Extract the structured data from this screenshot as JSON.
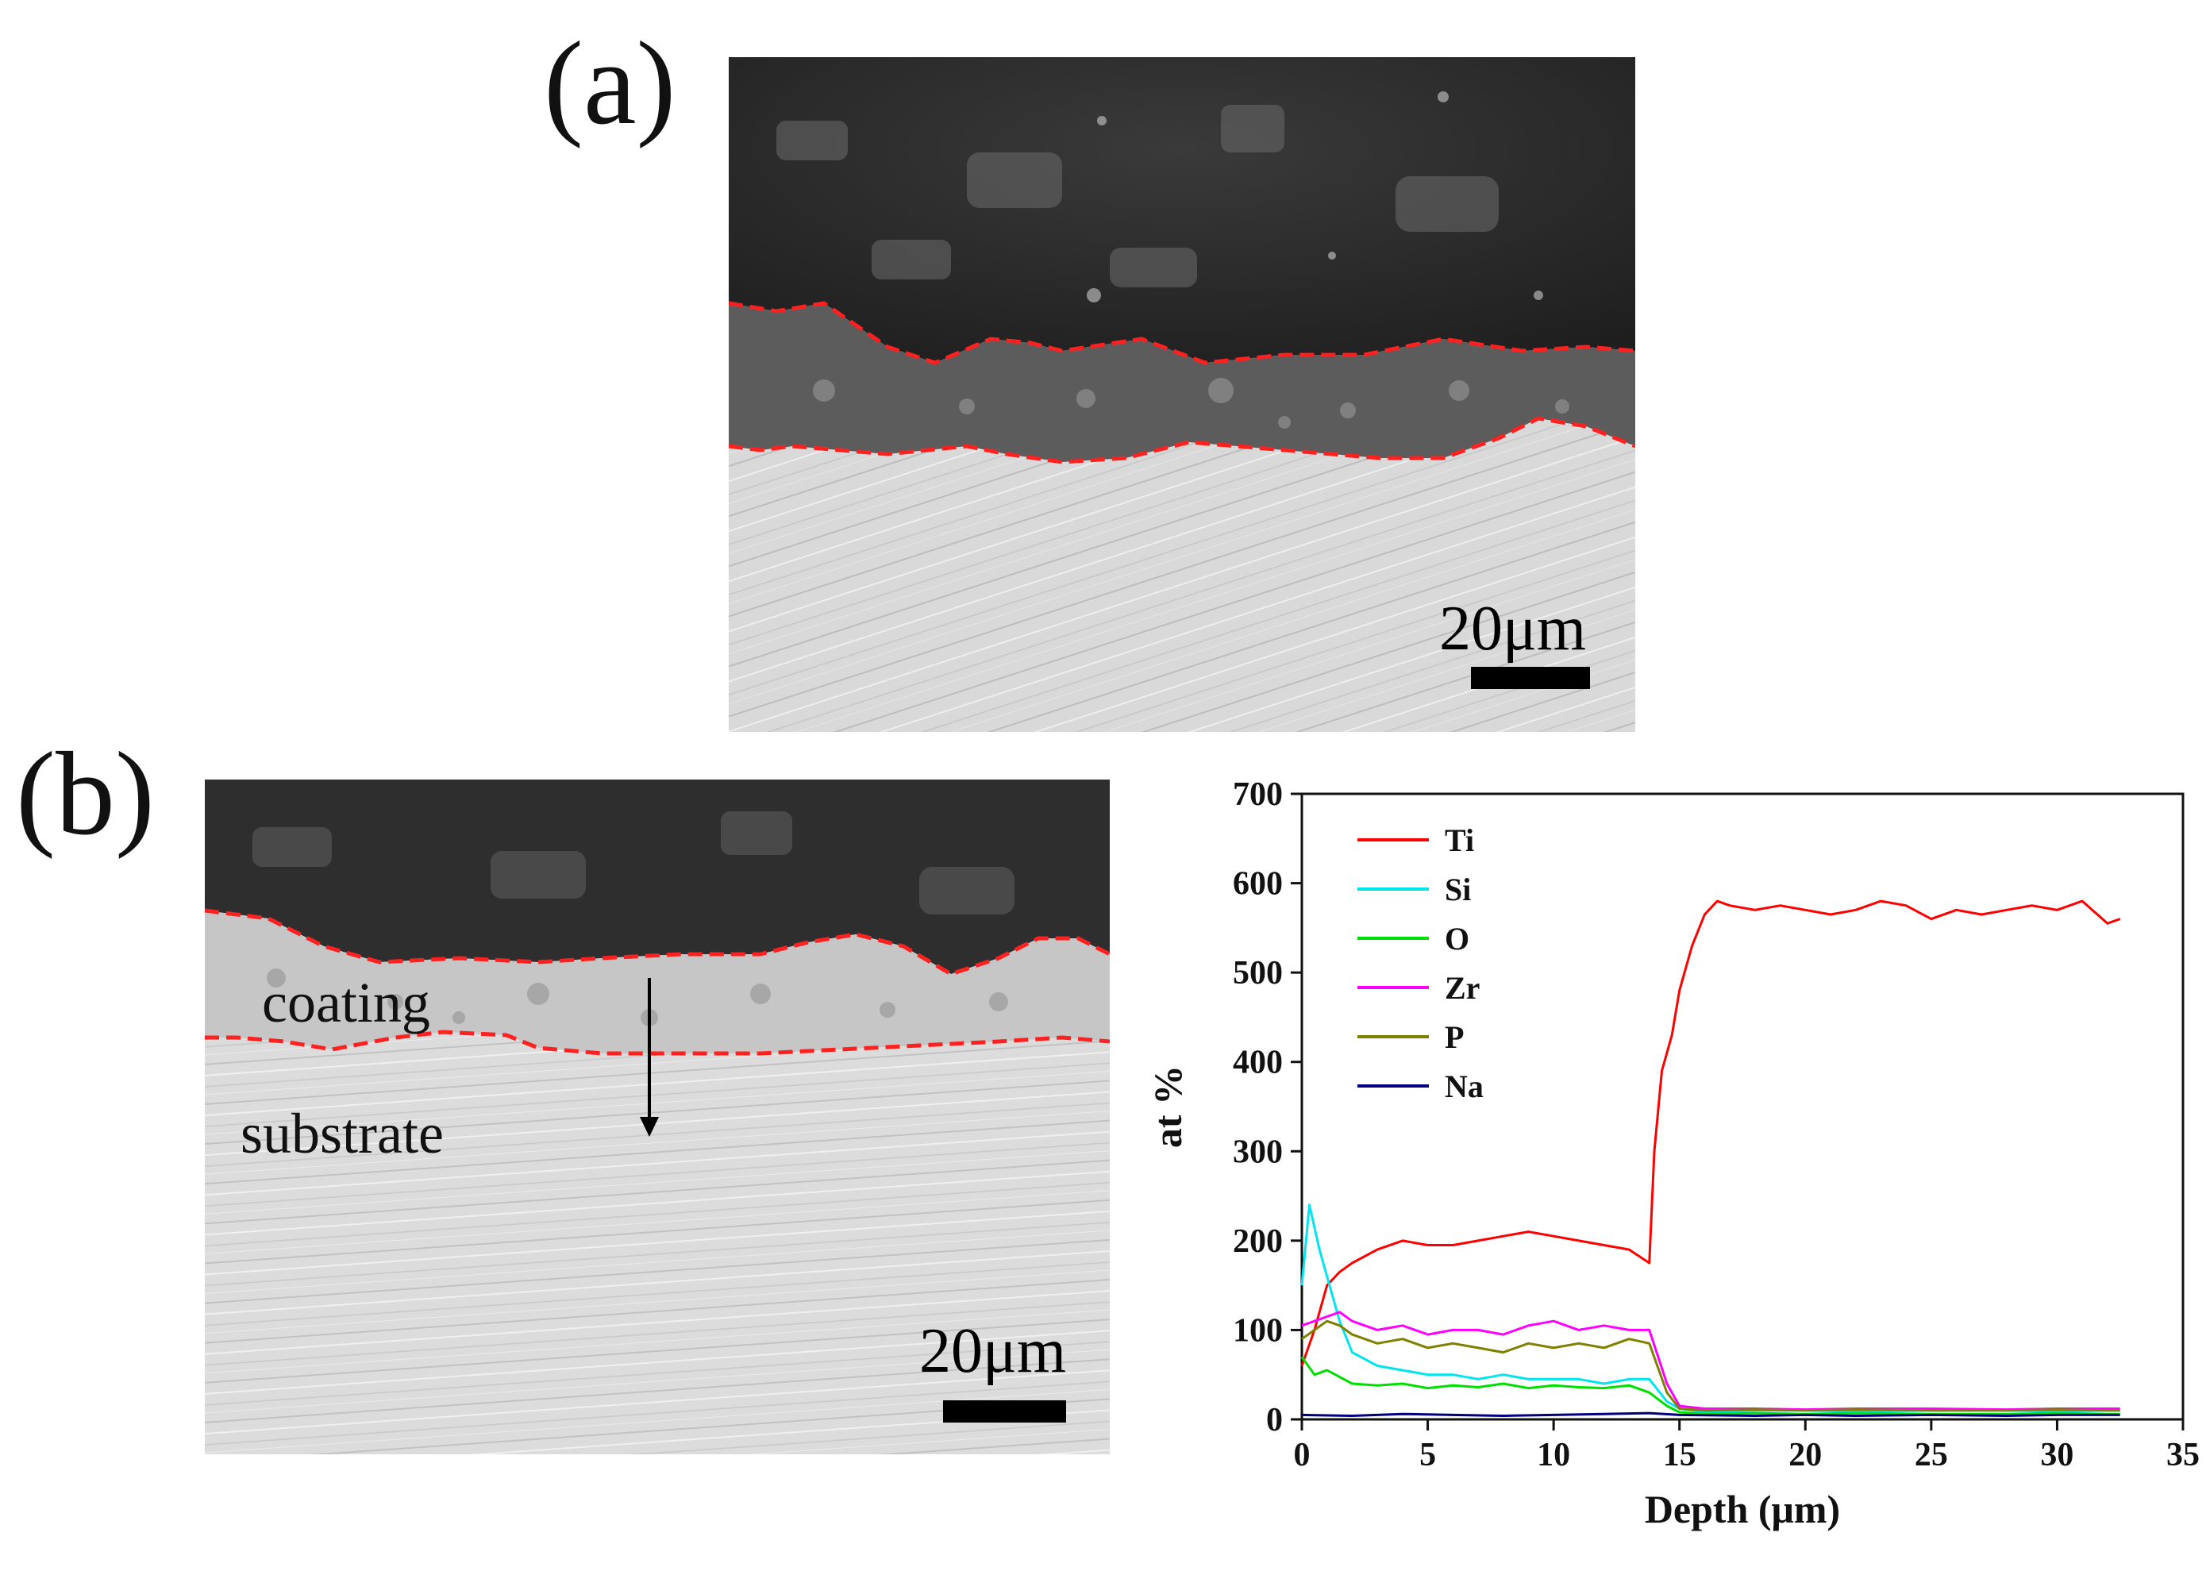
{
  "figure": {
    "panel_a": {
      "label": "(a)",
      "scale_bar": "20μm"
    },
    "panel_b": {
      "label": "(b)",
      "scale_bar": "20μm",
      "coating_label": "coating",
      "substrate_label": "substrate"
    }
  },
  "colors": {
    "Ti": "#ff0000",
    "Si": "#00e5ee",
    "O": "#00e000",
    "Zr": "#ff00ff",
    "P": "#7f7f00",
    "Na": "#00007f",
    "boundary": "#ff2020"
  },
  "chart_data": {
    "type": "line",
    "xlabel": "Depth (μm)",
    "ylabel": "at %",
    "xlim": [
      0,
      35
    ],
    "ylim": [
      0,
      700
    ],
    "xticks": [
      0,
      5,
      10,
      15,
      20,
      25,
      30,
      35
    ],
    "yticks": [
      0,
      100,
      200,
      300,
      400,
      500,
      600,
      700
    ],
    "legend_position": "top-left",
    "series": [
      {
        "name": "Ti",
        "x": [
          0,
          0.5,
          1,
          1.5,
          2,
          3,
          4,
          5,
          6,
          7,
          8,
          9,
          10,
          11,
          12,
          13,
          13.8,
          14,
          14.3,
          14.7,
          15,
          15.5,
          16,
          16.5,
          17,
          18,
          19,
          20,
          21,
          22,
          23,
          24,
          25,
          26,
          27,
          28,
          29,
          30,
          31,
          32,
          32.5
        ],
        "values": [
          60,
          100,
          150,
          165,
          175,
          190,
          200,
          195,
          195,
          200,
          205,
          210,
          205,
          200,
          195,
          190,
          175,
          300,
          390,
          430,
          480,
          530,
          565,
          580,
          575,
          570,
          575,
          570,
          565,
          570,
          580,
          575,
          560,
          570,
          565,
          570,
          575,
          570,
          580,
          555,
          560
        ]
      },
      {
        "name": "Si",
        "x": [
          0,
          0.3,
          0.7,
          1,
          1.5,
          2,
          3,
          4,
          5,
          6,
          7,
          8,
          9,
          10,
          11,
          12,
          13,
          13.8,
          14.5,
          15,
          16,
          18,
          20,
          22,
          25,
          28,
          30,
          32,
          32.5
        ],
        "values": [
          150,
          240,
          190,
          160,
          110,
          75,
          60,
          55,
          50,
          50,
          45,
          50,
          45,
          45,
          45,
          40,
          45,
          45,
          20,
          12,
          8,
          10,
          10,
          9,
          10,
          10,
          9,
          10,
          10
        ]
      },
      {
        "name": "O",
        "x": [
          0,
          0.5,
          1,
          2,
          3,
          4,
          5,
          6,
          7,
          8,
          9,
          10,
          11,
          12,
          13,
          13.8,
          14.5,
          15,
          16,
          18,
          20,
          22,
          25,
          28,
          30,
          32,
          32.5
        ],
        "values": [
          70,
          50,
          55,
          40,
          38,
          40,
          35,
          38,
          36,
          40,
          35,
          38,
          36,
          35,
          38,
          30,
          15,
          8,
          6,
          7,
          6,
          7,
          6,
          6,
          7,
          6,
          6
        ]
      },
      {
        "name": "Zr",
        "x": [
          0,
          0.5,
          1,
          1.5,
          2,
          3,
          4,
          5,
          6,
          7,
          8,
          9,
          10,
          11,
          12,
          13,
          13.8,
          14.5,
          15,
          16,
          18,
          20,
          22,
          25,
          28,
          30,
          32,
          32.5
        ],
        "values": [
          105,
          110,
          115,
          120,
          110,
          100,
          105,
          95,
          100,
          100,
          95,
          105,
          110,
          100,
          105,
          100,
          100,
          40,
          15,
          12,
          12,
          11,
          12,
          12,
          11,
          12,
          12,
          12
        ]
      },
      {
        "name": "P",
        "x": [
          0,
          0.5,
          1,
          1.5,
          2,
          3,
          4,
          5,
          6,
          7,
          8,
          9,
          10,
          11,
          12,
          13,
          13.8,
          14.5,
          15,
          16,
          18,
          20,
          22,
          25,
          28,
          30,
          32,
          32.5
        ],
        "values": [
          90,
          100,
          110,
          105,
          95,
          85,
          90,
          80,
          85,
          80,
          75,
          85,
          80,
          85,
          80,
          90,
          85,
          30,
          12,
          10,
          11,
          10,
          11,
          10,
          10,
          11,
          10,
          10
        ]
      },
      {
        "name": "Na",
        "x": [
          0,
          2,
          4,
          6,
          8,
          10,
          12,
          13.8,
          15,
          18,
          20,
          22,
          25,
          28,
          30,
          32,
          32.5
        ],
        "values": [
          5,
          4,
          6,
          5,
          4,
          5,
          6,
          7,
          5,
          4,
          5,
          4,
          5,
          4,
          5,
          5,
          5
        ]
      }
    ]
  }
}
